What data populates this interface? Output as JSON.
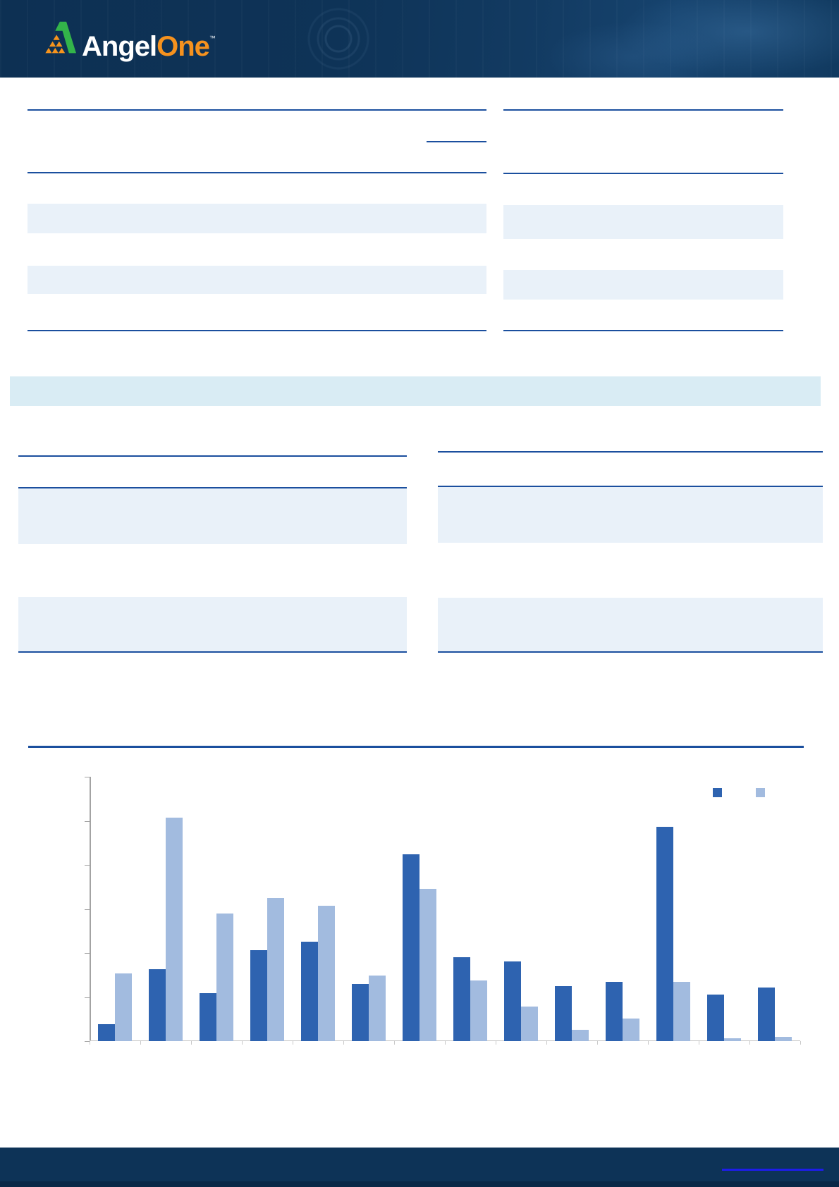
{
  "header": {
    "brand": {
      "word1": "Angel",
      "word2": "One",
      "trademark": "™"
    },
    "colors": {
      "background": "#0e3357",
      "word1": "#ffffff",
      "word2": "#f6921e",
      "icon_green": "#33b44a",
      "icon_orange": "#f7941d"
    }
  },
  "banner": {
    "color": "#d9ecf4"
  },
  "tables": {
    "band_color": "#e9f1f9",
    "rule_color": "#1b4f9e"
  },
  "footer": {
    "background": "#0d3357",
    "link_underline_color": "#1d1de8"
  },
  "chart_data": {
    "type": "bar",
    "title": "",
    "xlabel": "",
    "ylabel": "",
    "ylim": [
      0,
      6
    ],
    "y_tick_intervals": 6,
    "y_ticks_labeled": false,
    "grid": false,
    "categories": [
      "",
      "",
      "",
      "",
      "",
      "",
      "",
      "",
      "",
      "",
      "",
      "",
      "",
      ""
    ],
    "categories_visible": false,
    "series": [
      {
        "name": "",
        "color": "#2e63b0",
        "values": [
          0.38,
          1.63,
          1.08,
          2.07,
          2.26,
          1.29,
          4.24,
          1.9,
          1.81,
          1.24,
          1.35,
          4.87,
          1.05,
          1.21
        ]
      },
      {
        "name": "",
        "color": "#a2bbdf",
        "values": [
          1.53,
          5.07,
          2.9,
          3.24,
          3.07,
          1.48,
          3.45,
          1.37,
          0.78,
          0.26,
          0.51,
          1.34,
          0.06,
          0.1
        ]
      }
    ],
    "legend": {
      "position": "top-right",
      "labels_visible": false
    }
  }
}
